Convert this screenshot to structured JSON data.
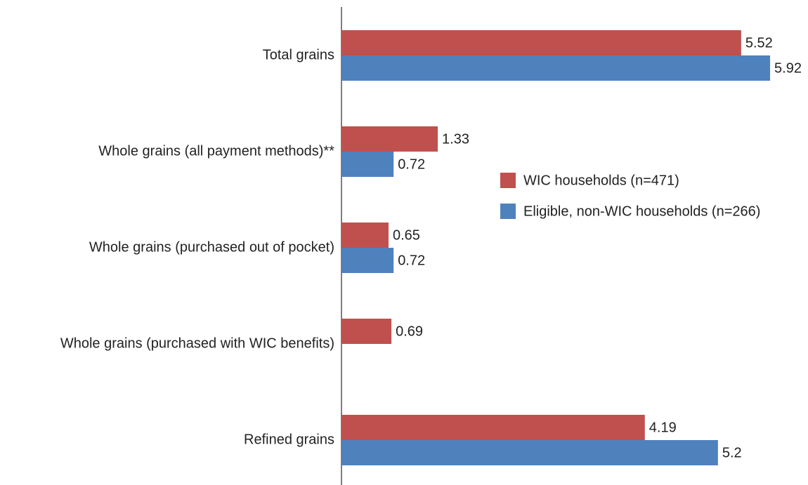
{
  "chart_data": {
    "type": "bar",
    "orientation": "horizontal",
    "categories": [
      "Total grains",
      "Whole grains (all payment methods)**",
      "Whole grains (purchased out of pocket)",
      "Whole grains (purchased with WIC benefits)",
      "Refined grains"
    ],
    "series": [
      {
        "name": "WIC households (n=471)",
        "color": "#c0504d",
        "values": [
          5.52,
          1.33,
          0.65,
          0.69,
          4.19
        ]
      },
      {
        "name": "Eligible, non-WIC households (n=266)",
        "color": "#4f81bd",
        "values": [
          5.92,
          0.72,
          0.72,
          null,
          5.2
        ]
      }
    ],
    "legend": "right"
  }
}
